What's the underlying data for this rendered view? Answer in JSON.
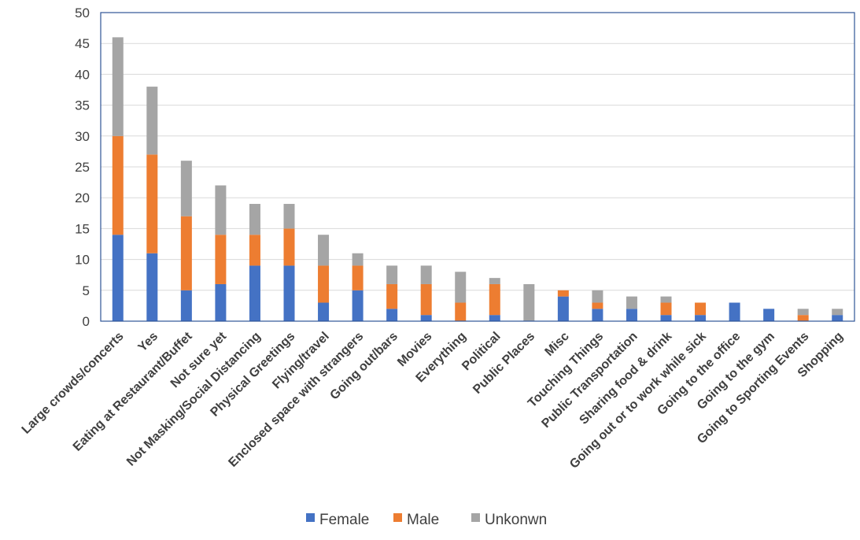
{
  "chart_data": {
    "type": "bar",
    "stacked": true,
    "title": "",
    "xlabel": "",
    "ylabel": "",
    "ylim": [
      0,
      50
    ],
    "yticks": [
      0,
      5,
      10,
      15,
      20,
      25,
      30,
      35,
      40,
      45,
      50
    ],
    "grid": true,
    "legend_position": "bottom",
    "categories": [
      "Large crowds/concerts",
      "Yes",
      "Eating at Restaurant/Buffet",
      "Not sure yet",
      "Not Masking/Social Distancing",
      "Physical Greetings",
      "Flying/travel",
      "Enclosed space with strangers",
      "Going out/bars",
      "Movies",
      "Everything",
      "Political",
      "Public Places",
      "Misc",
      "Touching Things",
      "Public Transportation",
      "Sharing food & drink",
      "Going out or to work while sick",
      "Going to the office",
      "Going to the gym",
      "Going to Sporting Events",
      "Shopping"
    ],
    "series": [
      {
        "name": "Female",
        "color": "#4472C4",
        "values": [
          14,
          11,
          5,
          6,
          9,
          9,
          3,
          5,
          2,
          1,
          0,
          1,
          0,
          4,
          2,
          2,
          1,
          1,
          3,
          2,
          0,
          1
        ]
      },
      {
        "name": "Male",
        "color": "#ED7D31",
        "values": [
          16,
          16,
          12,
          8,
          5,
          6,
          6,
          4,
          4,
          5,
          3,
          5,
          0,
          1,
          1,
          0,
          2,
          2,
          0,
          0,
          1,
          0
        ]
      },
      {
        "name": "Unkonwn",
        "color": "#A5A5A5",
        "values": [
          16,
          11,
          9,
          8,
          5,
          4,
          5,
          2,
          3,
          3,
          5,
          1,
          6,
          0,
          2,
          2,
          1,
          0,
          0,
          0,
          1,
          1
        ]
      }
    ]
  },
  "colors": {
    "grid": "#D9D9D9",
    "border": "#2F5597",
    "axis": "#BFBFBF",
    "text": "#404040"
  }
}
